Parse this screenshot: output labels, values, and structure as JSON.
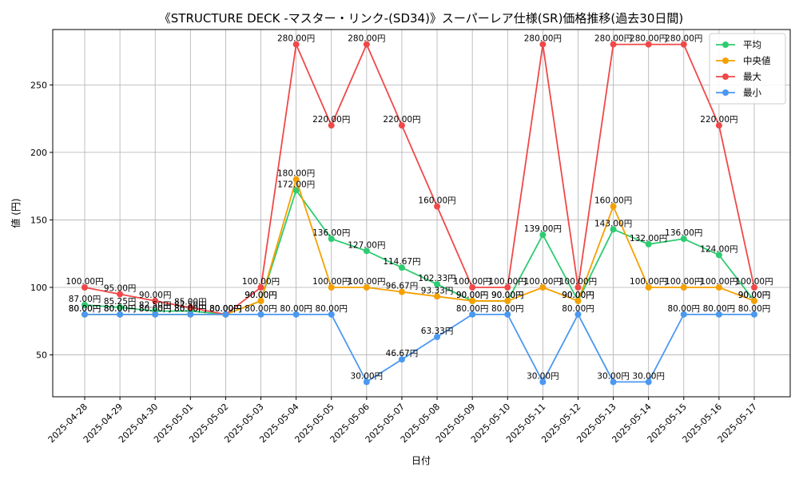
{
  "chart_data": {
    "type": "line",
    "title": "《STRUCTURE DECK -マスター・リンク-(SD34)》スーパーレア仕様(SR)価格推移(過去30日間)",
    "xlabel": "日付",
    "ylabel": "値 (円)",
    "unit_suffix": "円",
    "categories": [
      "2025-04-28",
      "2025-04-29",
      "2025-04-30",
      "2025-05-01",
      "2025-05-02",
      "2025-05-03",
      "2025-05-04",
      "2025-05-05",
      "2025-05-06",
      "2025-05-07",
      "2025-05-08",
      "2025-05-09",
      "2025-05-10",
      "2025-05-11",
      "2025-05-12",
      "2025-05-13",
      "2025-05-14",
      "2025-05-15",
      "2025-05-16",
      "2025-05-17"
    ],
    "ylim": [
      19,
      291
    ],
    "yticks": [
      50,
      100,
      150,
      200,
      250
    ],
    "grid": true,
    "legend_position": "top-right",
    "series": [
      {
        "name": "平均",
        "color": "#2ecc71",
        "values": [
          87,
          85.25,
          82.5,
          82.5,
          80,
          90,
          172,
          136,
          127,
          114.67,
          102.33,
          90,
          90,
          139,
          90,
          143,
          132,
          136,
          124,
          90
        ]
      },
      {
        "name": "中央値",
        "color": "#f5a000",
        "values": [
          80,
          80,
          80,
          80,
          80,
          90,
          180,
          100,
          100,
          96.67,
          93.33,
          90,
          90,
          100,
          90,
          160,
          100,
          100,
          100,
          90
        ]
      },
      {
        "name": "最大",
        "color": "#f04848",
        "values": [
          100,
          95,
          90,
          85,
          80,
          100,
          280,
          220,
          280,
          220,
          160,
          100,
          100,
          280,
          100,
          280,
          280,
          280,
          220,
          100
        ]
      },
      {
        "name": "最小",
        "color": "#4a98f0",
        "values": [
          80,
          80,
          80,
          80,
          80,
          80,
          80,
          80,
          30,
          46.67,
          63.33,
          80,
          80,
          30,
          80,
          30,
          30,
          80,
          80,
          80
        ]
      }
    ]
  }
}
